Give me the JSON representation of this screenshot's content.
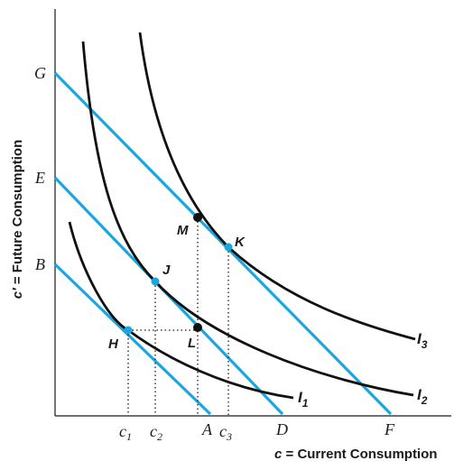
{
  "axes": {
    "x_title": "c = Current Consumption",
    "y_title": "c′ = Future Consumption",
    "x_labels": [
      "c1",
      "c2",
      "A",
      "c3",
      "D",
      "F"
    ],
    "y_labels": [
      "G",
      "E",
      "B"
    ]
  },
  "points": [
    {
      "label": "H",
      "color": "#1aa7e0"
    },
    {
      "label": "J",
      "color": "#1aa7e0"
    },
    {
      "label": "K",
      "color": "#1aa7e0"
    },
    {
      "label": "L",
      "color": "#111111"
    },
    {
      "label": "M",
      "color": "#111111"
    }
  ],
  "curves": [
    {
      "name": "I1"
    },
    {
      "name": "I2"
    },
    {
      "name": "I3"
    }
  ],
  "budget_lines": [
    {
      "from": "B",
      "to": "A"
    },
    {
      "from": "E",
      "to": "D"
    },
    {
      "from": "G",
      "to": "F"
    }
  ],
  "colors": {
    "budget": "#1aa7e0",
    "indifference": "#111111",
    "axis": "#1a1a1a"
  }
}
